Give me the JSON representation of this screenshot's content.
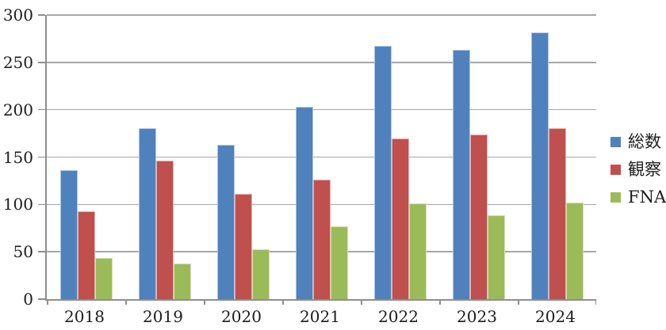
{
  "chart_data": {
    "type": "bar",
    "categories": [
      "2018",
      "2019",
      "2020",
      "2021",
      "2022",
      "2023",
      "2024"
    ],
    "series": [
      {
        "name": "総数",
        "color": "#4f81bd",
        "values": [
          135,
          180,
          162,
          202,
          267,
          262,
          281
        ]
      },
      {
        "name": "観察",
        "color": "#c0504d",
        "values": [
          92,
          145,
          110,
          125,
          169,
          173,
          180
        ]
      },
      {
        "name": "FNA",
        "color": "#9bbb59",
        "values": [
          43,
          37,
          52,
          76,
          100,
          88,
          101
        ]
      }
    ],
    "title": "",
    "xlabel": "",
    "ylabel": "",
    "ylim": [
      0,
      300
    ],
    "ytick_interval": 50,
    "ytick_labels": [
      "0",
      "50",
      "100",
      "150",
      "200",
      "250",
      "300"
    ],
    "grid": true,
    "legend_position": "right"
  },
  "colors": {
    "gridline": "#a6a6a6",
    "axis": "#8e8e8e",
    "label_text": "#1c1c1c"
  }
}
